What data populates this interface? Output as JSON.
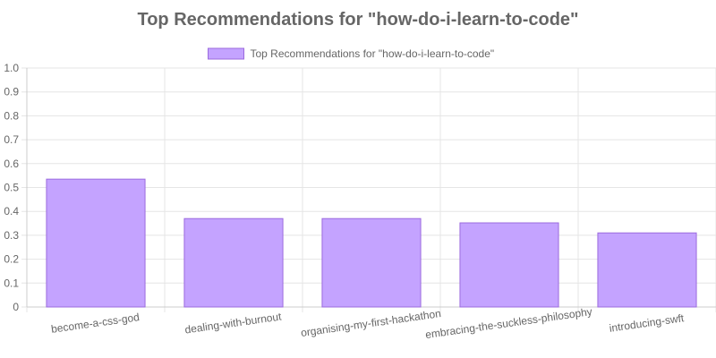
{
  "chart_data": {
    "type": "bar",
    "title": "Top Recommendations for \"how-do-i-learn-to-code\"",
    "legend": {
      "position": "top",
      "entries": [
        "Top Recommendations for \"how-do-i-learn-to-code\""
      ]
    },
    "categories": [
      "become-a-css-god",
      "dealing-with-burnout",
      "organising-my-first-hackathon",
      "embracing-the-suckless-philosophy",
      "introducing-swft"
    ],
    "series": [
      {
        "name": "Top Recommendations for \"how-do-i-learn-to-code\"",
        "values": [
          0.535,
          0.37,
          0.37,
          0.352,
          0.31
        ]
      }
    ],
    "ylim": [
      0,
      1.0
    ],
    "yticks": [
      "0",
      "0.1",
      "0.2",
      "0.3",
      "0.4",
      "0.5",
      "0.6",
      "0.7",
      "0.8",
      "0.9",
      "1.0"
    ],
    "xlabel": "",
    "ylabel": "",
    "grid": true,
    "colors": {
      "bar_fill": "#c4a3ff",
      "bar_border": "#9b6bde",
      "text": "#666666",
      "grid": "#e5e5e5"
    }
  }
}
